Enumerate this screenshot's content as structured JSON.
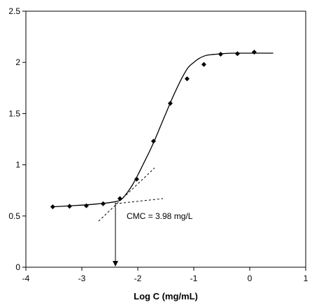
{
  "chart_data": {
    "type": "scatter",
    "title": "",
    "xlabel": "Log C (mg/mL)",
    "ylabel": "",
    "xlim": [
      -4,
      1
    ],
    "ylim": [
      0,
      2.5
    ],
    "x_ticks": [
      -4,
      -3,
      -2,
      -1,
      0,
      1
    ],
    "y_ticks": [
      0,
      0.5,
      1,
      1.5,
      2,
      2.5
    ],
    "x_tick_labels": [
      "-4",
      "-3",
      "-2",
      "-1",
      "0",
      "1"
    ],
    "y_tick_labels": [
      "0",
      "0.5",
      "1",
      "1.5",
      "2",
      "2.5"
    ],
    "grid": false,
    "series": [
      {
        "marker": "diamond",
        "x": [
          -3.52,
          -3.22,
          -2.92,
          -2.62,
          -2.32,
          -2.02,
          -1.72,
          -1.42,
          -1.12,
          -0.82,
          -0.52,
          -0.22,
          0.08
        ],
        "y": [
          0.59,
          0.595,
          0.6,
          0.62,
          0.67,
          0.86,
          1.23,
          1.6,
          1.84,
          1.98,
          2.08,
          2.085,
          2.1
        ]
      }
    ],
    "fit_curve": {
      "x": [
        -3.52,
        -3.2,
        -2.9,
        -2.6,
        -2.4,
        -2.3,
        -2.2,
        -2.1,
        -2.0,
        -1.9,
        -1.8,
        -1.7,
        -1.6,
        -1.5,
        -1.4,
        -1.3,
        -1.2,
        -1.1,
        -1.0,
        -0.9,
        -0.8,
        -0.7,
        -0.6,
        -0.5,
        -0.3,
        -0.1,
        0.1,
        0.3,
        0.42
      ],
      "y": [
        0.59,
        0.6,
        0.61,
        0.625,
        0.64,
        0.66,
        0.72,
        0.8,
        0.9,
        1.01,
        1.12,
        1.24,
        1.37,
        1.5,
        1.63,
        1.75,
        1.86,
        1.95,
        2.0,
        2.04,
        2.065,
        2.075,
        2.08,
        2.085,
        2.09,
        2.09,
        2.09,
        2.09,
        2.09
      ]
    },
    "tangent_lines": [
      {
        "x": [
          -2.7,
          -1.7
        ],
        "y": [
          0.45,
          0.97
        ]
      },
      {
        "x": [
          -2.4,
          -1.55
        ],
        "y": [
          0.62,
          0.67
        ]
      }
    ],
    "cmc_arrow": {
      "x": -2.4,
      "y_from": 0.63,
      "y_to": 0.0
    },
    "annotation": {
      "text": "CMC = 3.98 mg/L",
      "x": -2.2,
      "y": 0.5
    }
  }
}
